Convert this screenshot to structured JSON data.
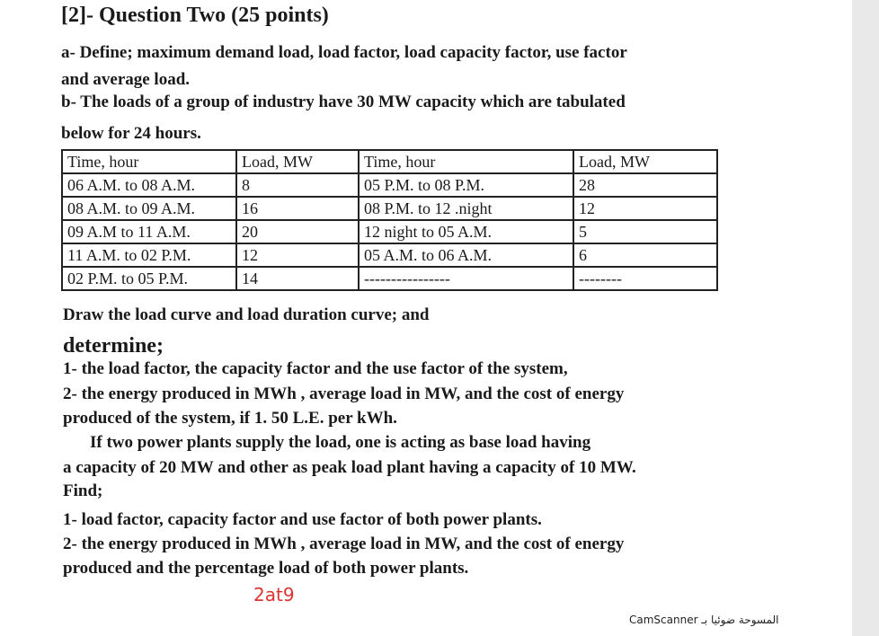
{
  "header": {
    "title": "[2]- Question Two (25 points)"
  },
  "part_a": {
    "lines": [
      "a- Define; maximum demand load, load factor, load capacity factor, use factor",
      "and average load."
    ]
  },
  "part_b": {
    "lines": [
      "b- The loads of a group of industry have 30 MW capacity which are tabulated",
      "below for 24 hours."
    ]
  },
  "table": {
    "headers": [
      "Time, hour",
      "Load, MW",
      "Time, hour",
      "Load, MW"
    ],
    "rows": [
      [
        "06 A.M. to 08 A.M.",
        "8",
        "05 P.M. to 08 P.M.",
        "28"
      ],
      [
        "08 A.M. to 09 A.M.",
        "16",
        "08 P.M. to 12 .night",
        "12"
      ],
      [
        "09 A.M to 11 A.M.",
        "20",
        "12 night to 05 A.M.",
        "5"
      ],
      [
        "11 A.M. to 02 P.M.",
        "12",
        "05 A.M. to 06 A.M.",
        "6"
      ],
      [
        "02 P.M. to 05 P.M.",
        "14",
        "----------------",
        "--------"
      ]
    ]
  },
  "body": {
    "lines": [
      "Draw the load curve and load duration curve; and",
      "determine;",
      "1- the load factor, the capacity factor and the use factor of the system,",
      "2- the energy produced in MWh , average load in MW, and the cost of energy",
      "produced of the system, if 1. 50 L.E. per kWh.",
      "If two power plants supply the load, one is acting as base load having",
      "a capacity of 20 MW and other as peak load plant having a capacity of 10 MW.",
      "Find;",
      "1- load factor, capacity factor and use factor of both power plants.",
      "2- the energy produced in MWh , average load in MW, and the cost of energy",
      "produced and the percentage load of both power plants."
    ]
  },
  "annotation": "2at9",
  "footer": "المسوحة ضوئيا بـ CamScanner"
}
